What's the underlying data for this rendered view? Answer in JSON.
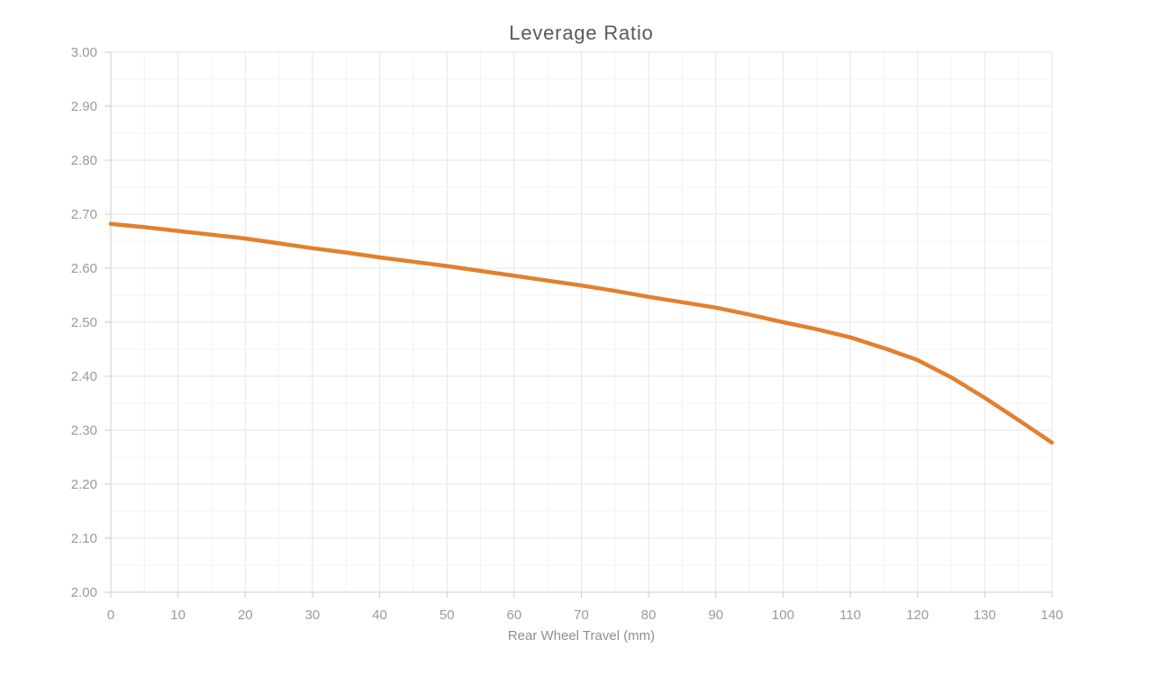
{
  "chart_data": {
    "type": "line",
    "title": "Leverage Ratio",
    "xlabel": "Rear Wheel Travel (mm)",
    "ylabel": "",
    "xlim": [
      0,
      140
    ],
    "ylim": [
      2.0,
      3.0
    ],
    "x_major_step": 10,
    "x_minor_step": 5,
    "y_major_step": 0.1,
    "y_minor_step": 0.05,
    "grid": true,
    "legend_position": "none",
    "x_tick_labels": [
      "0",
      "10",
      "20",
      "30",
      "40",
      "50",
      "60",
      "70",
      "80",
      "90",
      "100",
      "110",
      "120",
      "130",
      "140"
    ],
    "y_tick_labels": [
      "2.00",
      "2.10",
      "2.20",
      "2.30",
      "2.40",
      "2.50",
      "2.60",
      "2.70",
      "2.80",
      "2.90",
      "3.00"
    ],
    "series": [
      {
        "name": "Leverage Ratio",
        "color": "#E2802E",
        "x": [
          0,
          5,
          10,
          15,
          20,
          25,
          30,
          35,
          40,
          45,
          50,
          55,
          60,
          65,
          70,
          75,
          80,
          85,
          90,
          95,
          100,
          105,
          110,
          115,
          120,
          125,
          130,
          135,
          140
        ],
        "y": [
          2.682,
          2.676,
          2.669,
          2.662,
          2.655,
          2.646,
          2.637,
          2.629,
          2.62,
          2.612,
          2.604,
          2.595,
          2.586,
          2.577,
          2.568,
          2.558,
          2.547,
          2.537,
          2.527,
          2.514,
          2.5,
          2.487,
          2.472,
          2.452,
          2.43,
          2.398,
          2.36,
          2.319,
          2.277
        ]
      }
    ],
    "colors": {
      "title_text": "#595959",
      "tick_label_text": "#9a9a9a",
      "axis_label_text": "#8f8f8f",
      "axis_line": "#cccccc",
      "major_grid": "#e6e6e6",
      "minor_grid": "#f3f3f3",
      "line": "#E2802E",
      "background": "#ffffff"
    }
  }
}
